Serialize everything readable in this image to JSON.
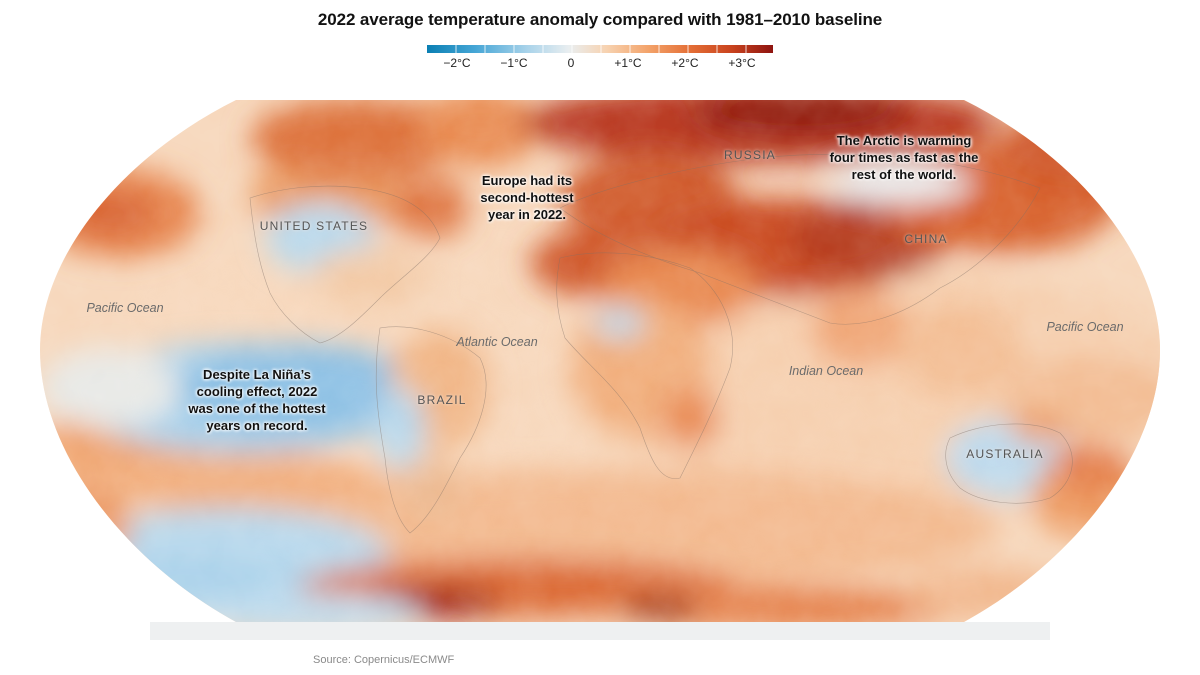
{
  "title": "2022 average temperature anomaly compared with 1981–2010 baseline",
  "legend": {
    "ticks": [
      "−2°C",
      "−1°C",
      "0",
      "+1°C",
      "+2°C",
      "+3°C"
    ],
    "colors": [
      "#0a7fb3",
      "#46a6d6",
      "#a9d3ea",
      "#e9eef0",
      "#f7d2b0",
      "#f3a36a",
      "#e46f36",
      "#c9431e",
      "#8e1410"
    ]
  },
  "country_labels": [
    "UNITED STATES",
    "RUSSIA",
    "CHINA",
    "BRAZIL",
    "AUSTRALIA"
  ],
  "ocean_labels": [
    "Pacific Ocean",
    "Atlantic Ocean",
    "Indian Ocean",
    "Pacific Ocean"
  ],
  "annotations": {
    "europe": [
      "Europe had its",
      "second-hottest",
      "year in 2022."
    ],
    "arctic": [
      "The Arctic is warming",
      "four times as fast as the",
      "rest of the world."
    ],
    "lanina": [
      "Despite La Niña’s",
      "cooling effect, 2022",
      "was one of the hottest",
      "years on record."
    ]
  },
  "source": "Source: Copernicus/ECMWF"
}
